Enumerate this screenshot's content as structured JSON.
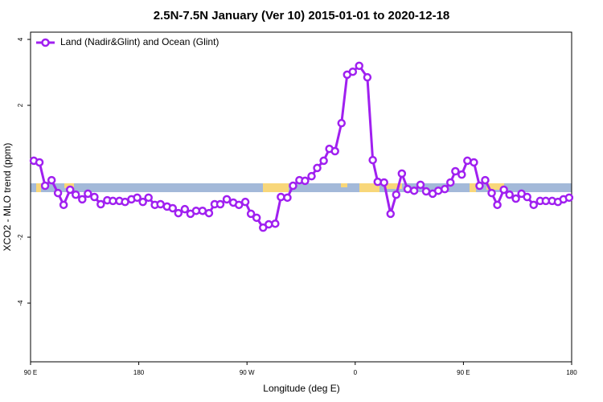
{
  "chart_data": {
    "type": "line",
    "title": "2.5N-7.5N January (Ver 10)   2015-01-01 to 2020-12-18",
    "x_label": "Longitude (deg E)",
    "y_label": "XCO2 - MLO trend (ppm)",
    "legend_position": "upper left",
    "xlim": [
      90,
      540
    ],
    "xticks": [
      {
        "value": 90,
        "label": "90 E"
      },
      180,
      {
        "value": 270,
        "label": "90 W"
      },
      {
        "value": 360,
        "label": "0"
      },
      {
        "value": 450,
        "label": "90 E"
      },
      {
        "value": 540,
        "label": "180"
      }
    ],
    "ylim": [
      -5.78,
      4.22
    ],
    "yticks": [
      -4,
      -2,
      2,
      4
    ],
    "x": [
      92.7,
      97.4,
      102.1,
      107.5,
      112.8,
      117.5,
      122.9,
      127.6,
      133.0,
      137.7,
      143.1,
      148.4,
      153.8,
      158.5,
      163.9,
      168.6,
      173.9,
      178.7,
      183.4,
      188.1,
      193.4,
      198.1,
      203.5,
      208.2,
      212.9,
      218.3,
      223.0,
      227.7,
      233.0,
      238.4,
      243.1,
      247.8,
      253.2,
      258.6,
      263.3,
      268.6,
      273.3,
      278.0,
      283.4,
      288.1,
      293.5,
      298.2,
      303.6,
      308.3,
      313.6,
      318.3,
      323.7,
      328.4,
      333.8,
      338.5,
      343.2,
      348.6,
      353.3,
      358.0,
      363.3,
      370.1,
      374.6,
      378.7,
      384.0,
      389.4,
      394.1,
      398.8,
      403.6,
      409.0,
      414.3,
      419.0,
      424.4,
      429.1,
      434.5,
      439.2,
      443.3,
      448.6,
      453.3,
      458.7,
      463.4,
      468.1,
      473.5,
      478.2,
      483.6,
      488.3,
      493.6,
      498.3,
      503.0,
      508.4,
      513.8,
      518.5,
      523.8,
      528.6,
      533.2,
      537.9
    ],
    "series": [
      {
        "name": "Land (Nadir&Glint) and Ocean (Glint)",
        "color": "#a020f0",
        "values": [
          0.32,
          0.27,
          -0.44,
          -0.27,
          -0.66,
          -1.02,
          -0.56,
          -0.71,
          -0.85,
          -0.68,
          -0.78,
          -1.0,
          -0.88,
          -0.9,
          -0.9,
          -0.93,
          -0.85,
          -0.8,
          -0.93,
          -0.8,
          -1.02,
          -1.0,
          -1.07,
          -1.12,
          -1.27,
          -1.15,
          -1.29,
          -1.2,
          -1.2,
          -1.27,
          -1.0,
          -1.0,
          -0.85,
          -0.95,
          -1.02,
          -0.93,
          -1.29,
          -1.41,
          -1.71,
          -1.61,
          -1.59,
          -0.78,
          -0.8,
          -0.44,
          -0.27,
          -0.29,
          -0.15,
          0.1,
          0.32,
          0.68,
          0.61,
          1.46,
          2.93,
          3.02,
          3.2,
          2.85,
          0.34,
          -0.32,
          -0.34,
          -1.29,
          -0.71,
          -0.07,
          -0.54,
          -0.59,
          -0.41,
          -0.61,
          -0.68,
          -0.59,
          -0.54,
          -0.34,
          0,
          -0.1,
          0.32,
          0.27,
          -0.44,
          -0.27,
          -0.66,
          -1.02,
          -0.56,
          -0.71,
          -0.83,
          -0.68,
          -0.78,
          -1.02,
          -0.9,
          -0.9,
          -0.9,
          -0.93,
          -0.85,
          -0.8
        ]
      }
    ]
  }
}
